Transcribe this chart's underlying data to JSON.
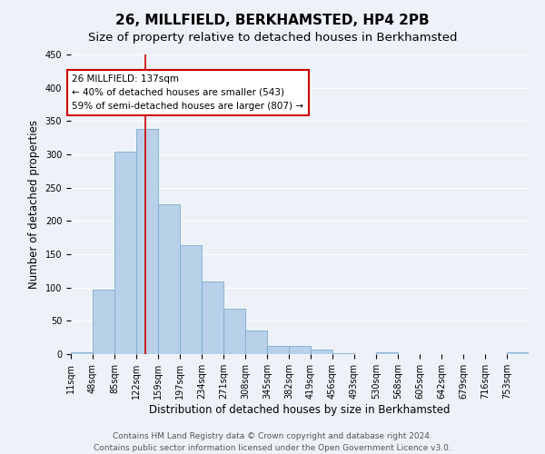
{
  "title": "26, MILLFIELD, BERKHAMSTED, HP4 2PB",
  "subtitle": "Size of property relative to detached houses in Berkhamsted",
  "xlabel": "Distribution of detached houses by size in Berkhamsted",
  "ylabel": "Number of detached properties",
  "bin_labels": [
    "11sqm",
    "48sqm",
    "85sqm",
    "122sqm",
    "159sqm",
    "197sqm",
    "234sqm",
    "271sqm",
    "308sqm",
    "345sqm",
    "382sqm",
    "419sqm",
    "456sqm",
    "493sqm",
    "530sqm",
    "568sqm",
    "605sqm",
    "642sqm",
    "679sqm",
    "716sqm",
    "753sqm"
  ],
  "bar_heights": [
    3,
    97,
    304,
    338,
    225,
    164,
    109,
    68,
    35,
    12,
    12,
    7,
    1,
    0,
    3,
    0,
    0,
    0,
    0,
    0,
    3
  ],
  "bar_color": "#b8d0e8",
  "bar_edge_color": "#7aadd4",
  "bin_edges": [
    11,
    48,
    85,
    122,
    159,
    197,
    234,
    271,
    308,
    345,
    382,
    419,
    456,
    493,
    530,
    568,
    605,
    642,
    679,
    716,
    753,
    790
  ],
  "vline_x": 137,
  "vline_color": "#cc0000",
  "annotation_text": "26 MILLFIELD: 137sqm\n← 40% of detached houses are smaller (543)\n59% of semi-detached houses are larger (807) →",
  "annotation_box_color": "#ffffff",
  "annotation_box_edge": "#cc0000",
  "ylim": [
    0,
    450
  ],
  "yticks": [
    0,
    50,
    100,
    150,
    200,
    250,
    300,
    350,
    400,
    450
  ],
  "footer1": "Contains HM Land Registry data © Crown copyright and database right 2024.",
  "footer2": "Contains public sector information licensed under the Open Government Licence v3.0.",
  "background_color": "#eef2f8",
  "grid_color": "#ffffff",
  "title_fontsize": 11,
  "subtitle_fontsize": 9.5,
  "axis_label_fontsize": 8.5,
  "tick_fontsize": 7,
  "annotation_fontsize": 7.5,
  "footer_fontsize": 6.5
}
